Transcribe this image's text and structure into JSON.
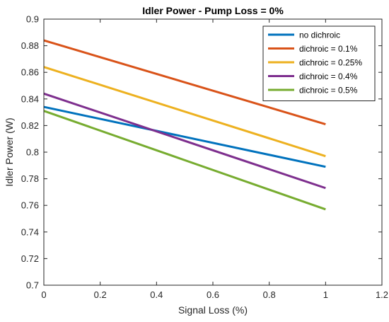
{
  "chart_data": {
    "type": "line",
    "title": "Idler Power - Pump Loss = 0%",
    "xlabel": "Signal Loss (%)",
    "ylabel": "Idler Power (W)",
    "xlim": [
      0,
      1.2
    ],
    "ylim": [
      0.7,
      0.9
    ],
    "xticks": [
      "0",
      "0.2",
      "0.4",
      "0.6",
      "0.8",
      "1",
      "1.2"
    ],
    "yticks": [
      "0.7",
      "0.72",
      "0.74",
      "0.76",
      "0.78",
      "0.8",
      "0.82",
      "0.84",
      "0.86",
      "0.88",
      "0.9"
    ],
    "grid": false,
    "legend_position": "top-right",
    "series": [
      {
        "name": "no dichroic",
        "color": "#0072BD",
        "x": [
          0,
          1
        ],
        "y": [
          0.834,
          0.789
        ]
      },
      {
        "name": "dichroic = 0.1%",
        "color": "#D95319",
        "x": [
          0,
          1
        ],
        "y": [
          0.884,
          0.821
        ]
      },
      {
        "name": "dichroic = 0.25%",
        "color": "#EDB120",
        "x": [
          0,
          1
        ],
        "y": [
          0.864,
          0.797
        ]
      },
      {
        "name": "dichroic = 0.4%",
        "color": "#7E2F8E",
        "x": [
          0,
          1
        ],
        "y": [
          0.844,
          0.773
        ]
      },
      {
        "name": "dichroic = 0.5%",
        "color": "#77AC30",
        "x": [
          0,
          1
        ],
        "y": [
          0.831,
          0.757
        ]
      }
    ]
  }
}
